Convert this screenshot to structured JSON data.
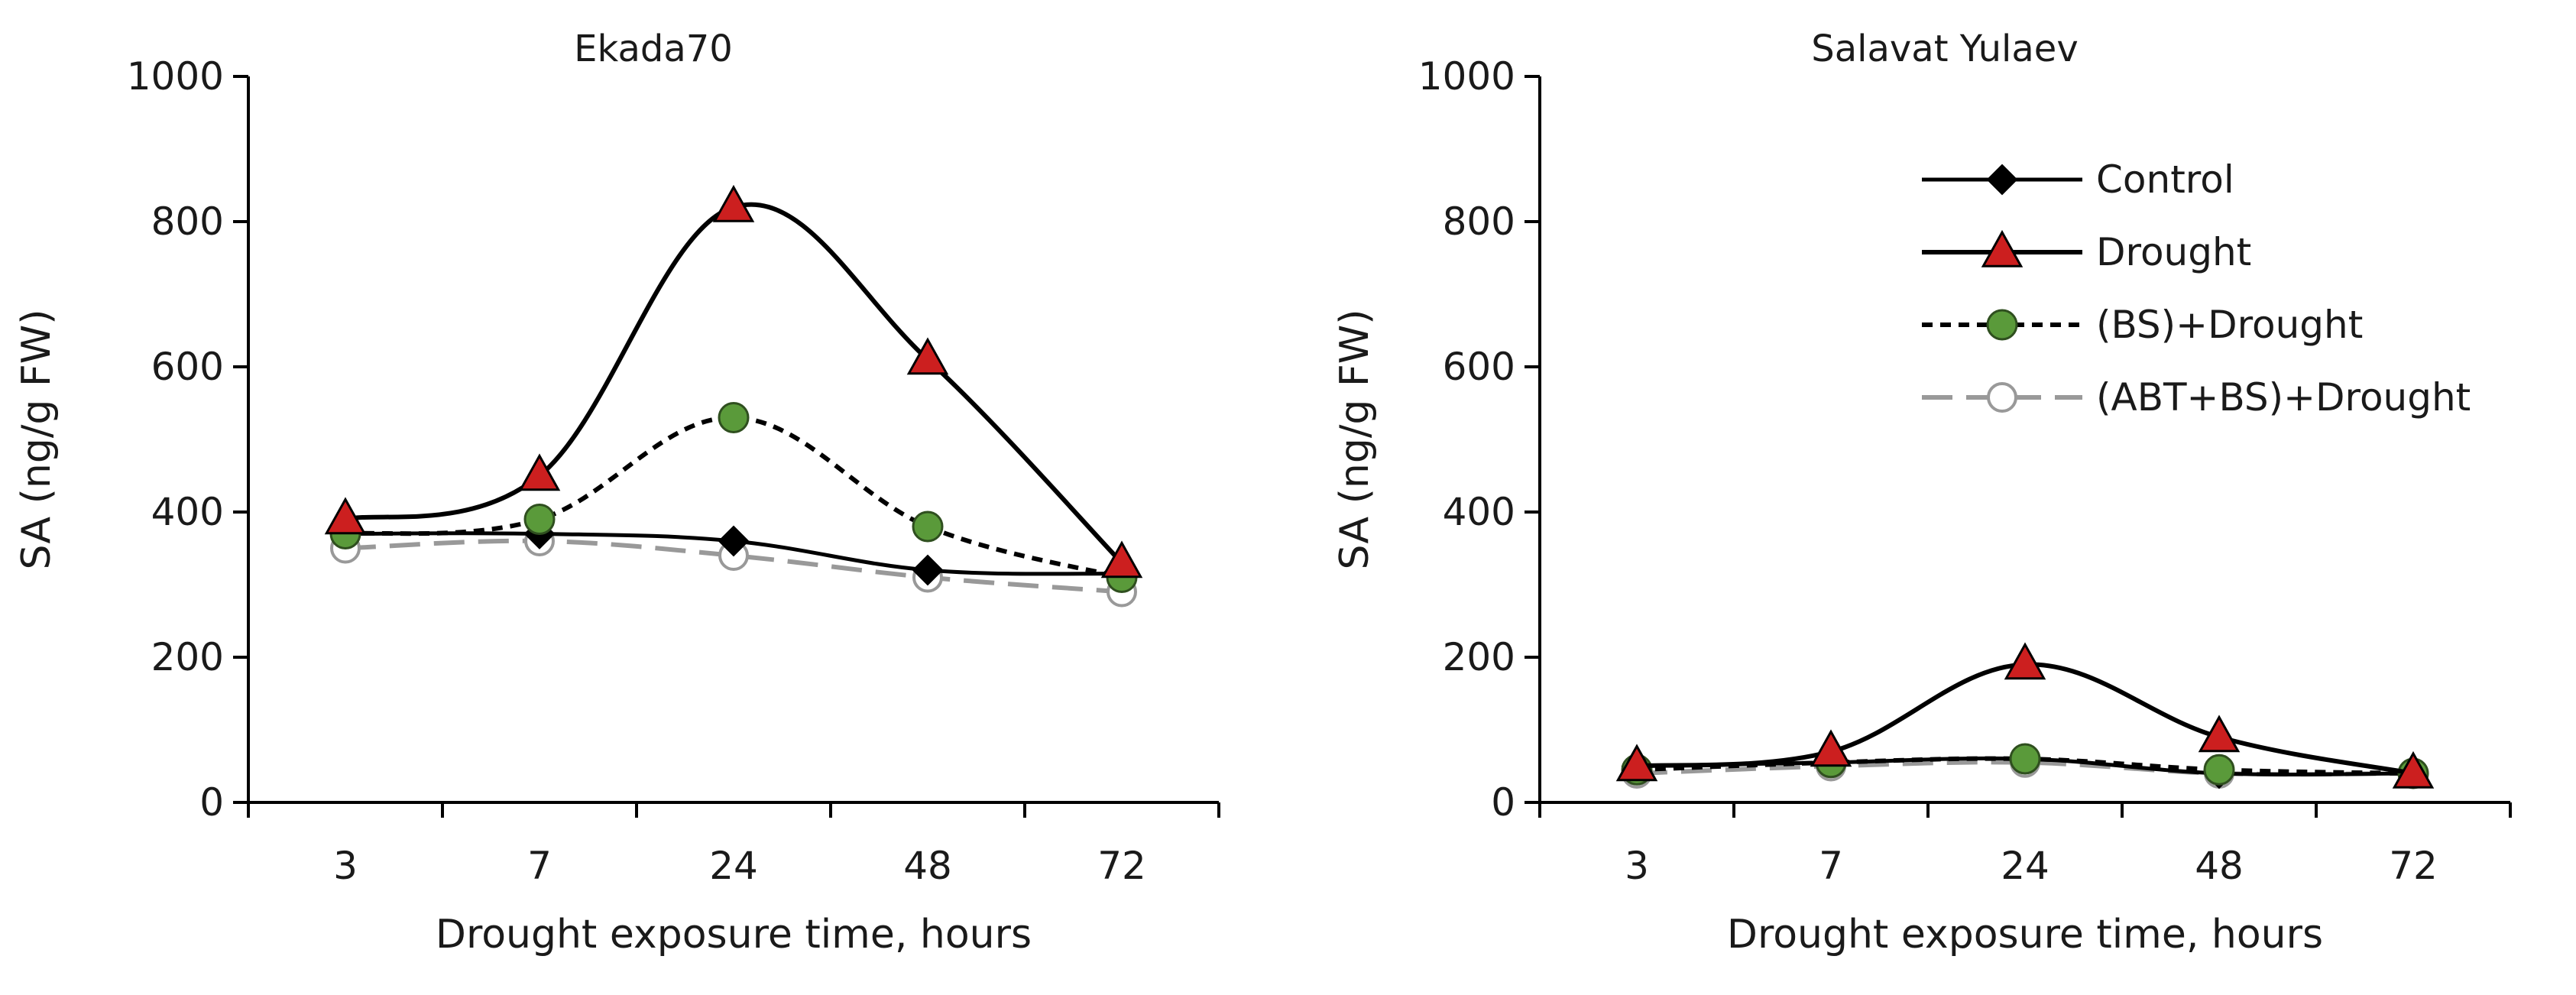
{
  "chart_data": [
    {
      "type": "line",
      "title": "Ekada70",
      "xlabel": "Drought exposure time, hours",
      "ylabel": "SA (ng/g FW)",
      "categories": [
        "3",
        "7",
        "24",
        "48",
        "72"
      ],
      "ylim": [
        0,
        1000
      ],
      "yticks": [
        "0",
        "200",
        "400",
        "600",
        "800",
        "1000"
      ],
      "series": [
        {
          "name": "Control",
          "values": [
            370,
            370,
            360,
            320,
            315
          ]
        },
        {
          "name": "Drought",
          "values": [
            390,
            450,
            820,
            610,
            330
          ]
        },
        {
          "name": "(BS)+Drought",
          "values": [
            370,
            390,
            530,
            380,
            310
          ]
        },
        {
          "name": "(ABT+BS)+Drought",
          "values": [
            350,
            360,
            340,
            310,
            290
          ]
        }
      ]
    },
    {
      "type": "line",
      "title": "Salavat Yulaev",
      "xlabel": "Drought exposure time, hours",
      "ylabel": "SA (ng/g FW)",
      "categories": [
        "3",
        "7",
        "24",
        "48",
        "72"
      ],
      "ylim": [
        0,
        1000
      ],
      "yticks": [
        "0",
        "200",
        "400",
        "600",
        "800",
        "1000"
      ],
      "series": [
        {
          "name": "Control",
          "values": [
            50,
            55,
            60,
            40,
            40
          ]
        },
        {
          "name": "Drought",
          "values": [
            50,
            70,
            190,
            90,
            40
          ]
        },
        {
          "name": "(BS)+Drought",
          "values": [
            45,
            55,
            60,
            45,
            40
          ]
        },
        {
          "name": "(ABT+BS)+Drought",
          "values": [
            40,
            50,
            55,
            40,
            40
          ]
        }
      ],
      "legend": "top-right"
    }
  ],
  "styles": {
    "Control": {
      "color": "#000000",
      "marker": "diamond",
      "dash": "solid",
      "marker_fill": "#000000"
    },
    "Drought": {
      "color": "#000000",
      "marker": "triangle",
      "dash": "solid",
      "marker_fill": "#cc1f1f"
    },
    "(BS)+Drought": {
      "color": "#000000",
      "marker": "circle",
      "dash": "dotted",
      "marker_fill": "#5a9a3a"
    },
    "(ABT+BS)+Drought": {
      "color": "#999999",
      "marker": "open-circle",
      "dash": "dashed",
      "marker_fill": "#ffffff"
    }
  }
}
